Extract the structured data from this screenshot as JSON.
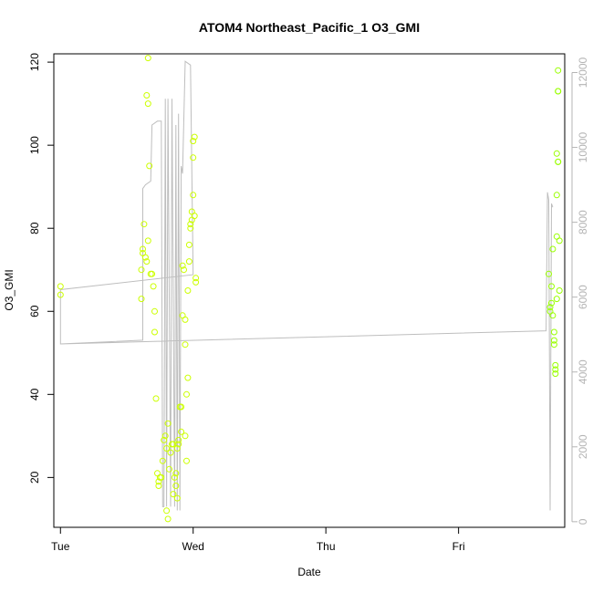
{
  "chart_data": {
    "type": "scatter",
    "title": "ATOM4 Northeast_Pacific_1 O3_GMI",
    "xlabel": "Date",
    "ylabel": "O3_GMI",
    "x_ticks": [
      "Tue",
      "Wed",
      "Thu",
      "Fri"
    ],
    "x_tick_positions": [
      0,
      1,
      2,
      3
    ],
    "xlim": [
      -0.05,
      3.8
    ],
    "ylim": [
      8,
      122
    ],
    "y_ticks": [
      20,
      40,
      60,
      80,
      100,
      120
    ],
    "y2_ticks": [
      0,
      2000,
      4000,
      6000,
      8000,
      10000,
      12000
    ],
    "y2lim": [
      -150,
      12500
    ],
    "colors": {
      "axis": "#000000",
      "right_axis": "#b4b4b4",
      "altitude_line": "#bebebe",
      "points_early": "#ccff00",
      "points_late": "#99ff00"
    },
    "series": [
      {
        "kind": "points",
        "values": [
          [
            0.0,
            66
          ],
          [
            0.0,
            64
          ],
          [
            0.62,
            75
          ],
          [
            0.62,
            74
          ],
          [
            0.61,
            70
          ],
          [
            0.61,
            63
          ],
          [
            0.63,
            81
          ],
          [
            0.64,
            73
          ],
          [
            0.65,
            72
          ],
          [
            0.66,
            121
          ],
          [
            0.65,
            112
          ],
          [
            0.66,
            110
          ],
          [
            0.67,
            95
          ],
          [
            0.66,
            77
          ],
          [
            0.68,
            69
          ],
          [
            0.69,
            69
          ],
          [
            0.7,
            66
          ],
          [
            0.71,
            60
          ],
          [
            0.71,
            55
          ],
          [
            0.72,
            39
          ],
          [
            0.73,
            21
          ],
          [
            0.74,
            19
          ],
          [
            0.74,
            18
          ],
          [
            0.75,
            20
          ],
          [
            0.76,
            20
          ],
          [
            0.77,
            24
          ],
          [
            0.78,
            29
          ],
          [
            0.79,
            30
          ],
          [
            0.8,
            27
          ],
          [
            0.81,
            33
          ],
          [
            0.8,
            12
          ],
          [
            0.81,
            10
          ],
          [
            0.82,
            22
          ],
          [
            0.83,
            26
          ],
          [
            0.84,
            28
          ],
          [
            0.85,
            28
          ],
          [
            0.85,
            16
          ],
          [
            0.86,
            20
          ],
          [
            0.87,
            21
          ],
          [
            0.87,
            18
          ],
          [
            0.88,
            15
          ],
          [
            0.88,
            27
          ],
          [
            0.89,
            28
          ],
          [
            0.89,
            29
          ],
          [
            0.9,
            37
          ],
          [
            0.91,
            37
          ],
          [
            0.91,
            31
          ],
          [
            0.92,
            59
          ],
          [
            0.92,
            71
          ],
          [
            0.93,
            70
          ],
          [
            0.94,
            58
          ],
          [
            0.94,
            30
          ],
          [
            0.95,
            40
          ],
          [
            0.95,
            24
          ],
          [
            0.96,
            44
          ],
          [
            0.96,
            65
          ],
          [
            0.97,
            72
          ],
          [
            0.97,
            76
          ],
          [
            0.98,
            80
          ],
          [
            0.98,
            81
          ],
          [
            0.99,
            82
          ],
          [
            0.99,
            84
          ],
          [
            1.0,
            97
          ],
          [
            1.0,
            101
          ],
          [
            1.01,
            102
          ],
          [
            1.0,
            88
          ],
          [
            1.01,
            83
          ],
          [
            1.02,
            68
          ],
          [
            1.02,
            67
          ],
          [
            0.94,
            52
          ]
        ]
      },
      {
        "kind": "points",
        "values": [
          [
            3.68,
            69
          ],
          [
            3.69,
            61
          ],
          [
            3.69,
            60
          ],
          [
            3.7,
            66
          ],
          [
            3.7,
            62
          ],
          [
            3.71,
            75
          ],
          [
            3.71,
            59
          ],
          [
            3.72,
            55
          ],
          [
            3.72,
            53
          ],
          [
            3.72,
            52
          ],
          [
            3.73,
            46
          ],
          [
            3.73,
            47
          ],
          [
            3.73,
            45
          ],
          [
            3.74,
            63
          ],
          [
            3.74,
            78
          ],
          [
            3.74,
            88
          ],
          [
            3.74,
            98
          ],
          [
            3.75,
            96
          ],
          [
            3.75,
            113
          ],
          [
            3.75,
            113
          ],
          [
            3.75,
            118
          ],
          [
            3.76,
            77
          ],
          [
            3.76,
            65
          ],
          [
            3.75,
            96
          ]
        ]
      },
      {
        "kind": "line",
        "axis": "right",
        "values": [
          [
            0.0,
            6200
          ],
          [
            0.0,
            4750
          ],
          [
            0.62,
            4850
          ],
          [
            0.62,
            8900
          ],
          [
            0.64,
            9000
          ],
          [
            0.68,
            9100
          ],
          [
            0.69,
            10600
          ],
          [
            0.73,
            10700
          ],
          [
            0.74,
            10700
          ],
          [
            0.76,
            10700
          ],
          [
            0.77,
            400
          ],
          [
            0.78,
            400
          ],
          [
            0.79,
            11300
          ],
          [
            0.8,
            400
          ],
          [
            0.81,
            11300
          ],
          [
            0.83,
            400
          ],
          [
            0.84,
            11300
          ],
          [
            0.86,
            400
          ],
          [
            0.87,
            10600
          ],
          [
            0.88,
            300
          ],
          [
            0.89,
            10900
          ],
          [
            0.9,
            300
          ],
          [
            0.91,
            9500
          ],
          [
            0.92,
            9300
          ],
          [
            0.94,
            12300
          ],
          [
            0.98,
            12200
          ],
          [
            1.0,
            6600
          ],
          [
            0.0,
            6200
          ],
          [
            0.0,
            4750
          ],
          [
            3.66,
            5100
          ],
          [
            3.67,
            8800
          ],
          [
            3.68,
            8600
          ],
          [
            3.69,
            300
          ],
          [
            3.7,
            8500
          ],
          [
            3.71,
            8400
          ]
        ]
      }
    ]
  }
}
